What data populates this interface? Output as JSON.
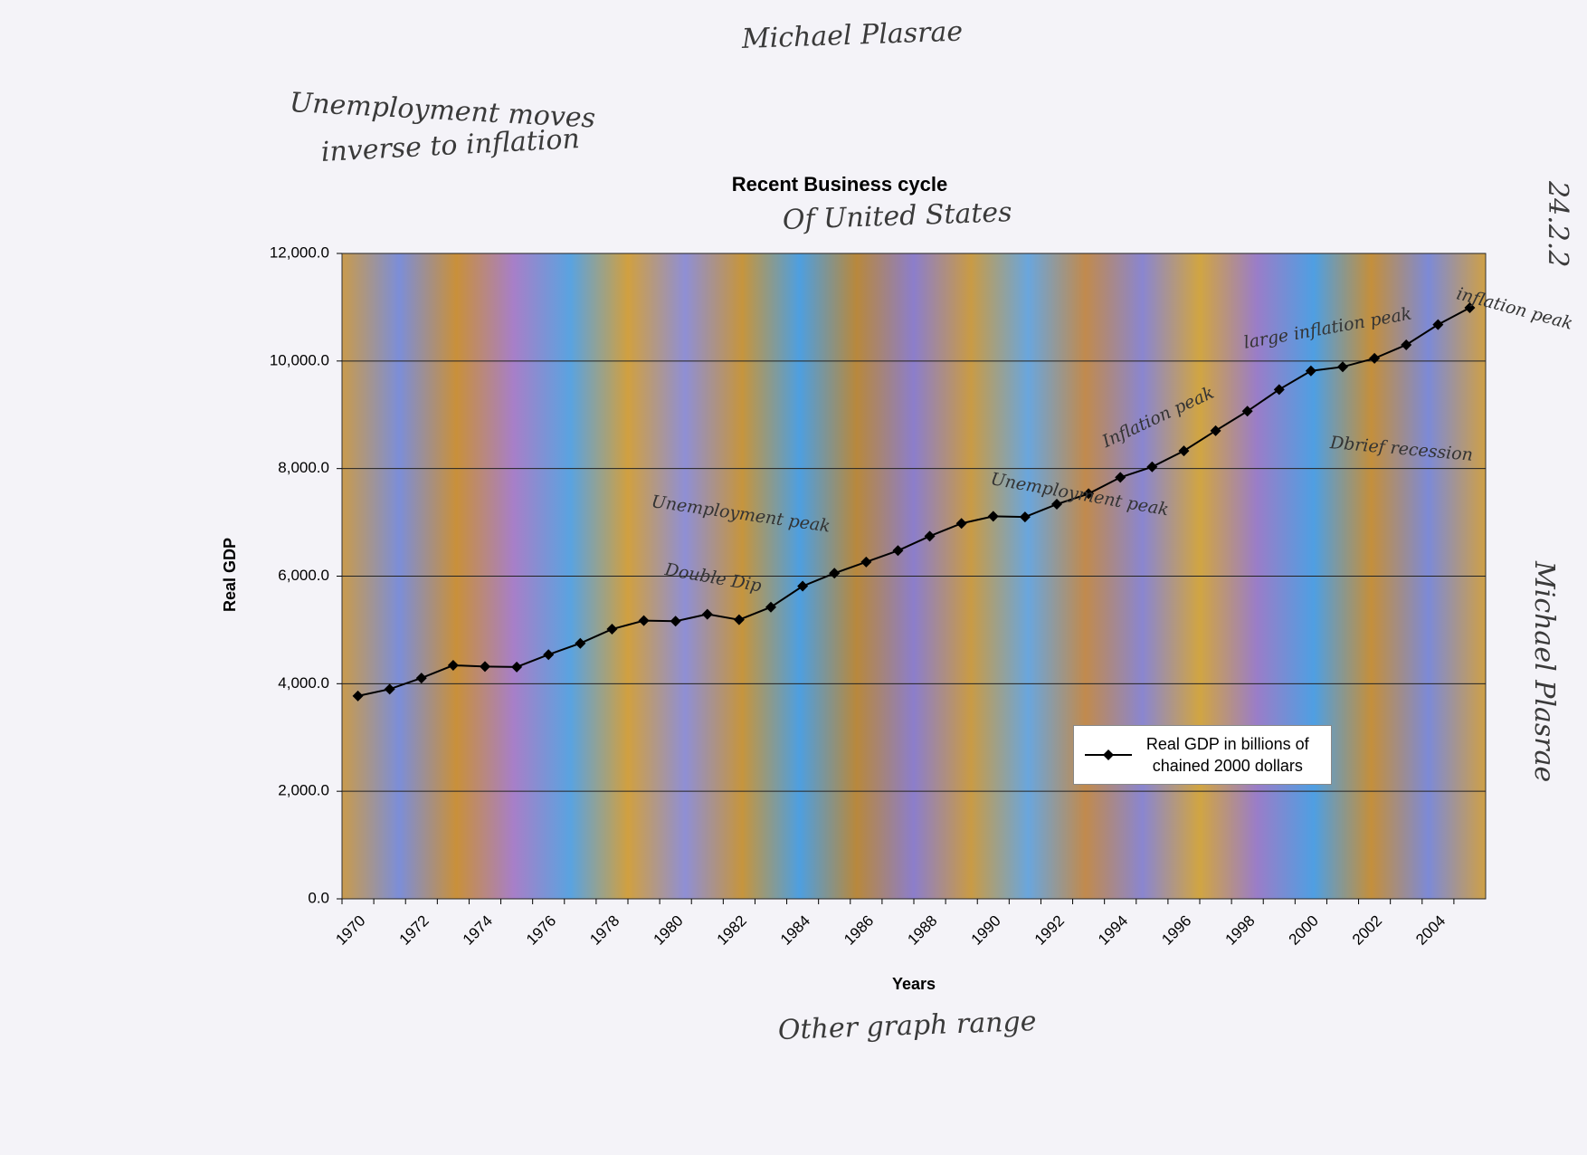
{
  "chart_data": {
    "type": "line",
    "title": "Recent Business cycle",
    "x_label": "Years",
    "y_label": "Real GDP",
    "categories": [
      "1970",
      null,
      "1972",
      null,
      "1974",
      null,
      "1976",
      null,
      "1978",
      null,
      "1980",
      null,
      "1982",
      null,
      "1984",
      null,
      "1986",
      null,
      "1988",
      null,
      "1990",
      null,
      "1992",
      null,
      "1994",
      null,
      "1996",
      null,
      "1998",
      null,
      "2000",
      null,
      "2002",
      null,
      "2004",
      null
    ],
    "series": [
      {
        "name": "Real GDP in billions of chained 2000 dollars",
        "color": "#000000",
        "values": [
          3772,
          3899,
          4105,
          4342,
          4320,
          4311,
          4541,
          4751,
          5015,
          5173,
          5162,
          5292,
          5189,
          5424,
          5814,
          6054,
          6264,
          6475,
          6743,
          6981,
          7113,
          7101,
          7337,
          7533,
          7836,
          8032,
          8329,
          8704,
          9067,
          9470,
          9817,
          9891,
          10049,
          10301,
          10676,
          10990
        ]
      }
    ],
    "ylim": [
      0,
      12000
    ],
    "yticks": [
      {
        "value": 0,
        "label": "0.0"
      },
      {
        "value": 2000,
        "label": "2,000.0"
      },
      {
        "value": 4000,
        "label": "4,000.0"
      },
      {
        "value": 6000,
        "label": "6,000.0"
      },
      {
        "value": 8000,
        "label": "8,000.0"
      },
      {
        "value": 10000,
        "label": "10,000.0"
      },
      {
        "value": 12000,
        "label": "12,000.0"
      }
    ],
    "grid": true,
    "legend": "lower right",
    "annotations": [
      "Michael Plasrae",
      "Unemployment moves",
      "inverse to inflation",
      "Of United States",
      "24.2.2",
      "Michael Plasrae",
      "Unemployment peak",
      "Double Dip",
      "Unemployment peak",
      "Inflation peak",
      "large inflation peak",
      "inflation peak",
      "Dbrief recession",
      "Other graph range"
    ]
  }
}
